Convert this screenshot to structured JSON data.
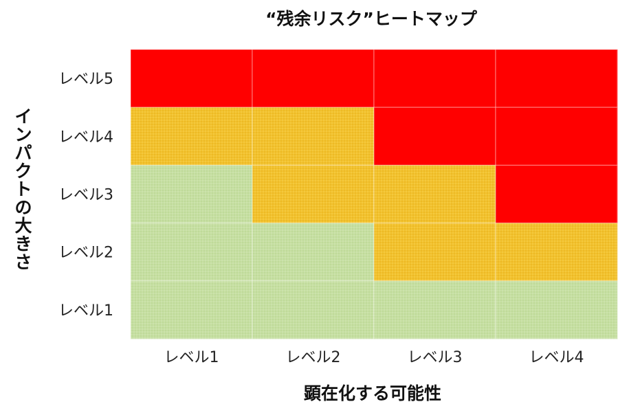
{
  "chart_data": {
    "type": "heatmap",
    "title": "“残余リスク”ヒートマップ",
    "xlabel": "顕在化する可能性",
    "ylabel": "インパクトの大きさ",
    "x_categories": [
      "レベル1",
      "レベル2",
      "レベル3",
      "レベル4"
    ],
    "y_categories": [
      "レベル5",
      "レベル4",
      "レベル3",
      "レベル2",
      "レベル1"
    ],
    "levels": {
      "green": "#c6dfa2",
      "yellow": "#f2c22e",
      "red": "#ff0000"
    },
    "grid": [
      [
        "red",
        "red",
        "red",
        "red"
      ],
      [
        "yellow",
        "yellow",
        "red",
        "red"
      ],
      [
        "green",
        "yellow",
        "yellow",
        "red"
      ],
      [
        "green",
        "green",
        "yellow",
        "yellow"
      ],
      [
        "green",
        "green",
        "green",
        "green"
      ]
    ],
    "legend": "none"
  }
}
